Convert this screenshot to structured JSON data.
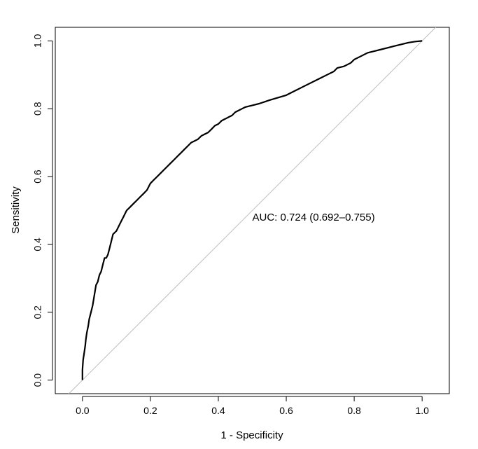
{
  "chart_data": {
    "type": "line",
    "title": "",
    "xlabel": "1 - Specificity",
    "ylabel": "Sensitivity",
    "xlim": [
      -0.08,
      1.08
    ],
    "ylim": [
      -0.04,
      1.04
    ],
    "x_ticks": [
      "0.0",
      "0.2",
      "0.4",
      "0.6",
      "0.8",
      "1.0"
    ],
    "y_ticks": [
      "0.0",
      "0.2",
      "0.4",
      "0.6",
      "0.8",
      "1.0"
    ],
    "x_tick_values": [
      0,
      0.2,
      0.4,
      0.6,
      0.8,
      1.0
    ],
    "y_tick_values": [
      0,
      0.2,
      0.4,
      0.6,
      0.8,
      1.0
    ],
    "grid": false,
    "reference_line": {
      "x": [
        -0.08,
        1.08
      ],
      "y": [
        -0.08,
        1.08
      ],
      "color": "#bebebe"
    },
    "annotation": {
      "text": "AUC: 0.724 (0.692–0.755)",
      "x": 0.5,
      "y": 0.48
    },
    "series": [
      {
        "color": "#000000",
        "x": [
          0,
          0,
          0.002,
          0.005,
          0.008,
          0.01,
          0.013,
          0.017,
          0.02,
          0.025,
          0.03,
          0.035,
          0.04,
          0.045,
          0.05,
          0.055,
          0.06,
          0.065,
          0.07,
          0.075,
          0.08,
          0.085,
          0.09,
          0.1,
          0.105,
          0.11,
          0.115,
          0.12,
          0.13,
          0.14,
          0.15,
          0.16,
          0.17,
          0.18,
          0.19,
          0.2,
          0.21,
          0.22,
          0.23,
          0.24,
          0.25,
          0.26,
          0.27,
          0.28,
          0.29,
          0.3,
          0.31,
          0.32,
          0.33,
          0.34,
          0.35,
          0.36,
          0.37,
          0.38,
          0.39,
          0.4,
          0.41,
          0.42,
          0.43,
          0.44,
          0.45,
          0.46,
          0.47,
          0.48,
          0.5,
          0.52,
          0.55,
          0.6,
          0.62,
          0.65,
          0.7,
          0.72,
          0.74,
          0.75,
          0.77,
          0.79,
          0.8,
          0.82,
          0.83,
          0.84,
          0.86,
          0.88,
          0.9,
          0.92,
          0.94,
          0.96,
          0.98,
          1.0
        ],
        "y": [
          0,
          0.03,
          0.06,
          0.08,
          0.1,
          0.12,
          0.14,
          0.16,
          0.18,
          0.2,
          0.22,
          0.25,
          0.28,
          0.29,
          0.31,
          0.32,
          0.34,
          0.36,
          0.36,
          0.37,
          0.39,
          0.41,
          0.43,
          0.44,
          0.45,
          0.46,
          0.47,
          0.48,
          0.5,
          0.51,
          0.52,
          0.53,
          0.54,
          0.55,
          0.56,
          0.58,
          0.59,
          0.6,
          0.61,
          0.62,
          0.63,
          0.64,
          0.65,
          0.66,
          0.67,
          0.68,
          0.69,
          0.7,
          0.705,
          0.71,
          0.72,
          0.725,
          0.73,
          0.74,
          0.75,
          0.755,
          0.765,
          0.77,
          0.775,
          0.78,
          0.79,
          0.795,
          0.8,
          0.805,
          0.81,
          0.815,
          0.825,
          0.84,
          0.85,
          0.865,
          0.89,
          0.9,
          0.91,
          0.92,
          0.925,
          0.935,
          0.945,
          0.955,
          0.96,
          0.965,
          0.97,
          0.975,
          0.98,
          0.985,
          0.99,
          0.995,
          0.998,
          1.0
        ]
      }
    ]
  }
}
